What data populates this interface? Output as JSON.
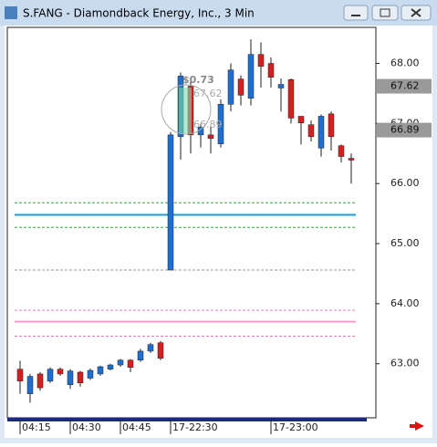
{
  "window_title": "S.FANG - Diamondback Energy, Inc., 3 Min",
  "chart_data": {
    "type": "candlestick",
    "categories": [
      "04:15",
      null,
      null,
      null,
      null,
      "04:30",
      null,
      null,
      null,
      null,
      "04:45",
      null,
      null,
      null,
      null,
      "17-22:30",
      null,
      null,
      null,
      null,
      null,
      null,
      null,
      null,
      null,
      "17-23:00",
      null,
      null,
      null,
      null,
      null,
      null,
      null,
      null
    ],
    "candles": [
      {
        "open": 62.91,
        "high": 63.05,
        "low": 62.5,
        "close": 62.71
      },
      {
        "open": 62.5,
        "high": 62.83,
        "low": 62.35,
        "close": 62.79
      },
      {
        "open": 62.83,
        "high": 62.86,
        "low": 62.55,
        "close": 62.6
      },
      {
        "open": 62.71,
        "high": 62.94,
        "low": 62.68,
        "close": 62.91
      },
      {
        "open": 62.91,
        "high": 62.94,
        "low": 62.8,
        "close": 62.83
      },
      {
        "open": 62.65,
        "high": 62.91,
        "low": 62.58,
        "close": 62.88
      },
      {
        "open": 62.86,
        "high": 62.88,
        "low": 62.62,
        "close": 62.68
      },
      {
        "open": 62.76,
        "high": 62.92,
        "low": 62.73,
        "close": 62.89
      },
      {
        "open": 62.83,
        "high": 62.97,
        "low": 62.8,
        "close": 62.95
      },
      {
        "open": 62.91,
        "high": 63.0,
        "low": 62.89,
        "close": 62.98
      },
      {
        "open": 62.98,
        "high": 63.08,
        "low": 62.95,
        "close": 63.06
      },
      {
        "open": 63.06,
        "high": 63.08,
        "low": 62.86,
        "close": 62.94
      },
      {
        "open": 63.06,
        "high": 63.25,
        "low": 63.03,
        "close": 63.21
      },
      {
        "open": 63.21,
        "high": 63.35,
        "low": 63.18,
        "close": 63.32
      },
      {
        "open": 63.35,
        "high": 63.38,
        "low": 63.06,
        "close": 63.09
      },
      {
        "open": 64.56,
        "high": 66.86,
        "low": 64.56,
        "close": 66.81
      },
      {
        "open": 66.78,
        "high": 67.85,
        "low": 66.4,
        "close": 67.79
      },
      {
        "open": 67.62,
        "high": 67.7,
        "low": 66.5,
        "close": 66.81
      },
      {
        "open": 66.81,
        "high": 67.0,
        "low": 66.6,
        "close": 66.94
      },
      {
        "open": 66.81,
        "high": 66.95,
        "low": 66.5,
        "close": 66.75
      },
      {
        "open": 66.66,
        "high": 67.4,
        "low": 66.6,
        "close": 67.32
      },
      {
        "open": 67.32,
        "high": 68.0,
        "low": 67.2,
        "close": 67.89
      },
      {
        "open": 67.74,
        "high": 67.8,
        "low": 67.3,
        "close": 67.47
      },
      {
        "open": 67.42,
        "high": 68.4,
        "low": 67.3,
        "close": 68.15
      },
      {
        "open": 68.15,
        "high": 68.35,
        "low": 67.6,
        "close": 67.95
      },
      {
        "open": 68.0,
        "high": 68.1,
        "low": 67.6,
        "close": 67.77
      },
      {
        "open": 67.59,
        "high": 67.75,
        "low": 67.2,
        "close": 67.65
      },
      {
        "open": 67.73,
        "high": 67.75,
        "low": 67.0,
        "close": 67.09
      },
      {
        "open": 67.12,
        "high": 67.12,
        "low": 66.65,
        "close": 67.01
      },
      {
        "open": 66.98,
        "high": 67.05,
        "low": 66.7,
        "close": 66.78
      },
      {
        "open": 66.59,
        "high": 67.15,
        "low": 66.45,
        "close": 67.12
      },
      {
        "open": 67.16,
        "high": 67.2,
        "low": 66.55,
        "close": 66.78
      },
      {
        "open": 66.63,
        "high": 66.65,
        "low": 66.35,
        "close": 66.45
      },
      {
        "open": 66.42,
        "high": 66.5,
        "low": 66.0,
        "close": 66.39
      }
    ],
    "up_color": "#1f6fd1",
    "down_color": "#d42020",
    "ylim": [
      62.1,
      68.6
    ],
    "yticks": [
      {
        "value": 63,
        "label": "63.00"
      },
      {
        "value": 64,
        "label": "64.00"
      },
      {
        "value": 65,
        "label": "65.00"
      },
      {
        "value": 66,
        "label": "66.00"
      },
      {
        "value": 67,
        "label": "67.00"
      },
      {
        "value": 68,
        "label": "68.00"
      }
    ],
    "levels": [
      {
        "value": 65.68,
        "color": "#2fae3a",
        "dashed": true
      },
      {
        "value": 65.48,
        "color": "#1aa0d0",
        "dashed": false
      },
      {
        "value": 65.27,
        "color": "#2fae3a",
        "dashed": true
      },
      {
        "value": 64.56,
        "color": "#999999",
        "dashed": true
      },
      {
        "value": 63.89,
        "color": "#e87ab8",
        "dashed": true
      },
      {
        "value": 63.7,
        "color": "#f09ad0",
        "dashed": false
      },
      {
        "value": 63.46,
        "color": "#e87ab8",
        "dashed": true
      }
    ],
    "price_labels": [
      {
        "value": 67.62,
        "label": "67.62"
      },
      {
        "value": 66.89,
        "label": "66.89"
      }
    ],
    "annotations": [
      "$0.73",
      "67.62",
      "66.89"
    ]
  }
}
